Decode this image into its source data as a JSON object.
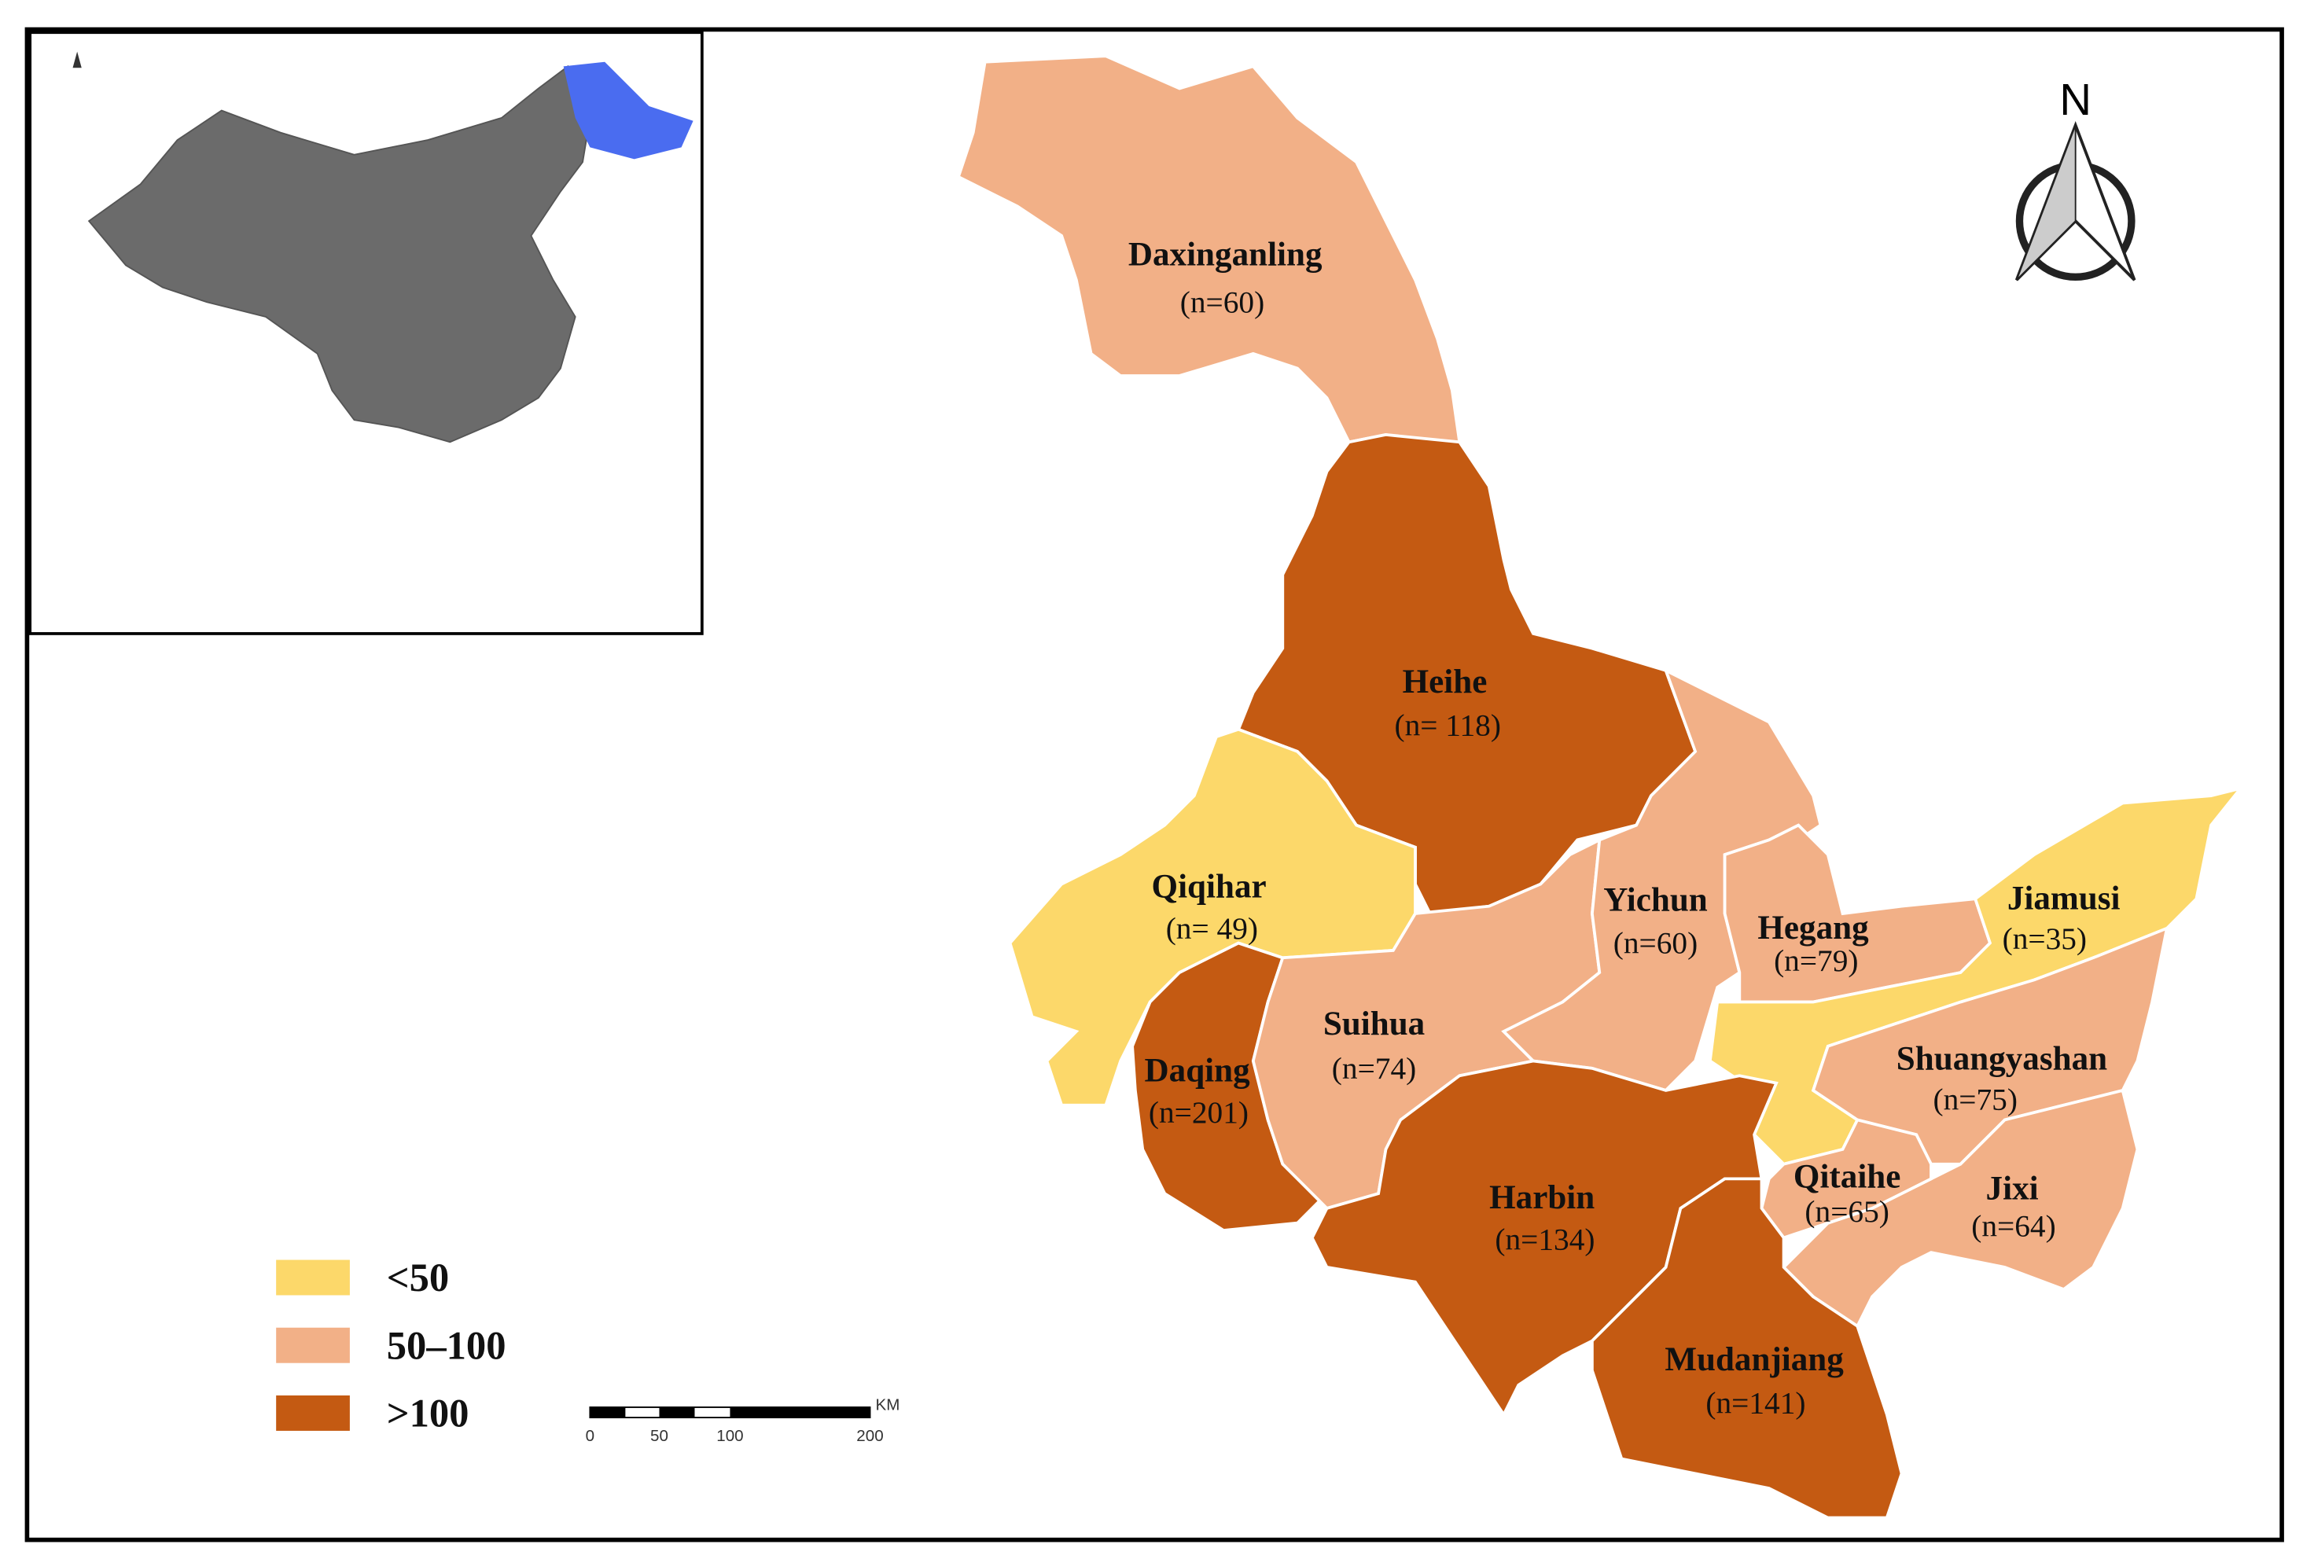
{
  "map": {
    "regions": [
      {
        "name": "Daxinganling",
        "label": "(n=60)",
        "color": "#f2b087"
      },
      {
        "name": "Heihe",
        "label": "(n= 118)",
        "color": "#c45a12"
      },
      {
        "name": "Qiqihar",
        "label": "(n= 49)",
        "color": "#fcd86a"
      },
      {
        "name": "Daqing",
        "label": "(n=201)",
        "color": "#c45a12"
      },
      {
        "name": "Suihua",
        "label": "(n=74)",
        "color": "#f2b087"
      },
      {
        "name": "Yichun",
        "label": "(n=60)",
        "color": "#f2b087"
      },
      {
        "name": "Hegang",
        "label": "(n=79)",
        "color": "#f2b087"
      },
      {
        "name": "Jiamusi",
        "label": "(n=35)",
        "color": "#fcd86a"
      },
      {
        "name": "Shuangyashan",
        "label": "(n=75)",
        "color": "#f2b087"
      },
      {
        "name": "Jixi",
        "label": "(n=64)",
        "color": "#f2b087"
      },
      {
        "name": "Qitaihe",
        "label": "(n=65)",
        "color": "#f2b087"
      },
      {
        "name": "Harbin",
        "label": "(n=134)",
        "color": "#c45a12"
      },
      {
        "name": "Mudanjiang",
        "label": "(n=141)",
        "color": "#c45a12"
      }
    ],
    "legend": [
      {
        "label": "<50",
        "color": "#fcd86a"
      },
      {
        "label": "50–100",
        "color": "#f2b087"
      },
      {
        "label": ">100",
        "color": "#c45a12"
      }
    ],
    "north": "N",
    "scale_bar": {
      "unit": "KM",
      "ticks": [
        "0",
        "50",
        "100",
        "200"
      ]
    }
  }
}
